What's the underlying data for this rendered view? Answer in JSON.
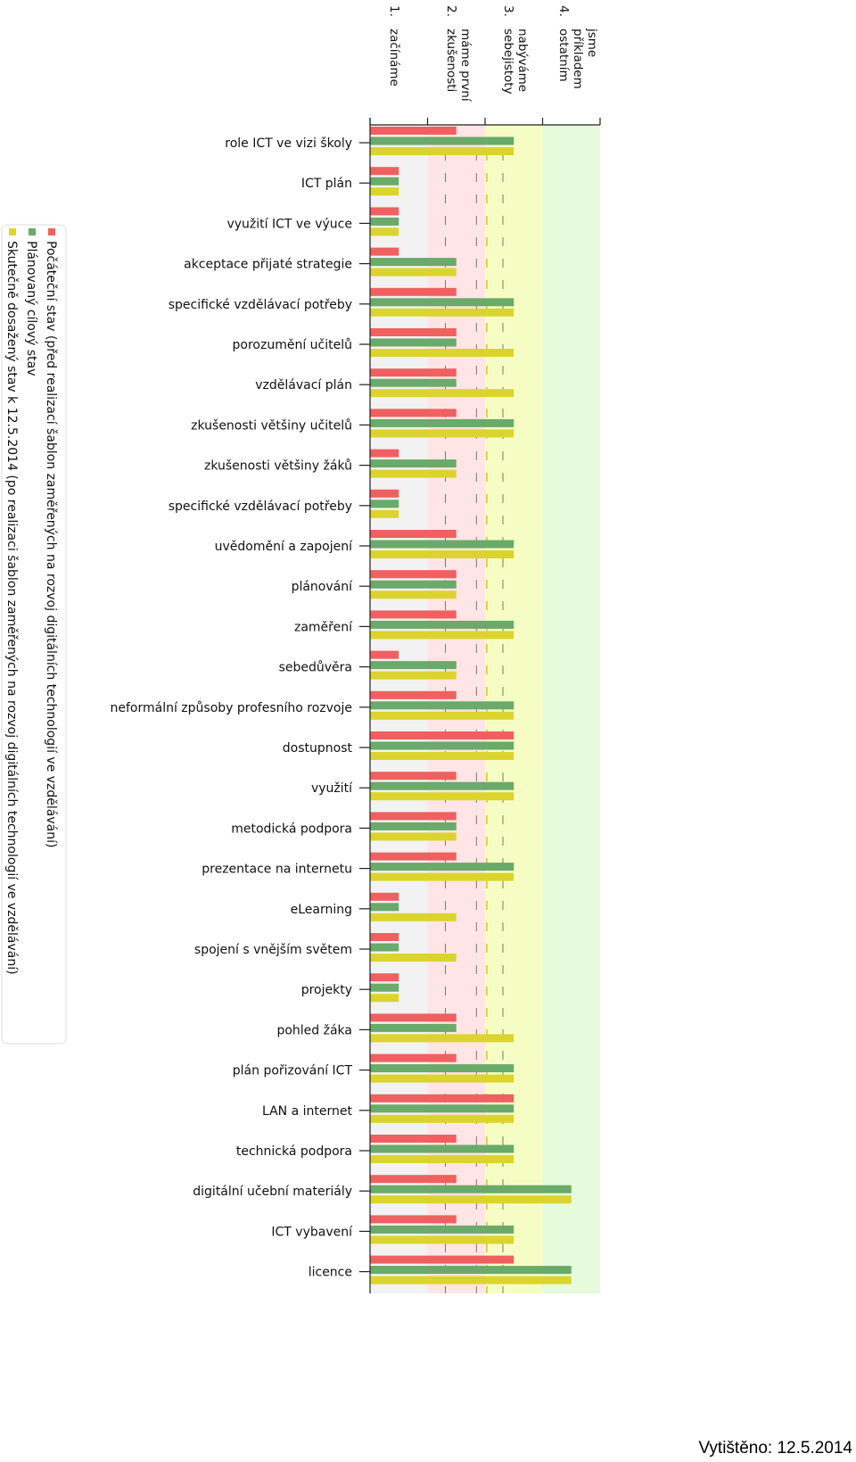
{
  "printed_note": "Vytištěno: 12.5.2014",
  "chart_data": {
    "type": "bar",
    "orientation": "horizontal",
    "level_labels": [
      {
        "level": 1,
        "number": "1.",
        "lines": [
          "začínáme"
        ]
      },
      {
        "level": 2,
        "number": "2.",
        "lines": [
          "máme první",
          "zkušenosti"
        ]
      },
      {
        "level": 3,
        "number": "3.",
        "lines": [
          "nabýváme",
          "sebejistoty"
        ]
      },
      {
        "level": 4,
        "number": "4.",
        "lines": [
          "jsme",
          "příkladem",
          "ostatním"
        ]
      }
    ],
    "xlim": [
      0,
      4
    ],
    "band_colors": [
      "#f2f2f2",
      "#ffe5e5",
      "#f6fdc4",
      "#e5fbdc"
    ],
    "categories": [
      "role ICT ve vizi školy",
      "ICT plán",
      "využití ICT ve výuce",
      "akceptace přijaté strategie",
      "specifické vzdělávací potřeby",
      "porozumění učitelů",
      "vzdělávací plán",
      "zkušenosti většiny učitelů",
      "zkušenosti většiny žáků",
      "specifické vzdělávací potřeby",
      "uvědomění a zapojení",
      "plánování",
      "zaměření",
      "sebedůvěra",
      "neformální způsoby profesního rozvoje",
      "dostupnost",
      "využití",
      "metodická podpora",
      "prezentace na internetu",
      "eLearning",
      "spojení s vnějším světem",
      "projekty",
      "pohled žáka",
      "plán pořizování ICT",
      "LAN a internet",
      "technická podpora",
      "digitální učební materiály",
      "ICT vybavení",
      "licence"
    ],
    "series": [
      {
        "name": "Počáteční stav (před realizací šablon zaměřených na rozvoj digitálních technologií ve vzdělávání)",
        "color": "#f06060",
        "values": [
          1.5,
          0.5,
          0.5,
          0.5,
          1.5,
          1.5,
          1.5,
          1.5,
          0.5,
          0.5,
          1.5,
          1.5,
          1.5,
          0.5,
          1.5,
          2.5,
          1.5,
          1.5,
          1.5,
          0.5,
          0.5,
          0.5,
          1.5,
          1.5,
          2.5,
          1.5,
          1.5,
          1.5,
          2.5
        ]
      },
      {
        "name": "Plánovaný cílový stav",
        "color": "#6aaa6a",
        "values": [
          2.5,
          0.5,
          0.5,
          1.5,
          2.5,
          1.5,
          1.5,
          2.5,
          1.5,
          0.5,
          2.5,
          1.5,
          2.5,
          1.5,
          2.5,
          2.5,
          2.5,
          1.5,
          2.5,
          0.5,
          0.5,
          0.5,
          1.5,
          2.5,
          2.5,
          2.5,
          3.5,
          2.5,
          3.5
        ]
      },
      {
        "name": "Skutečně dosažený stav k 12.5.2014 (po realizaci šablon zaměřených na rozvoj digitálních technologií ve vzdělávání)",
        "color": "#dcd42e",
        "values": [
          2.5,
          0.5,
          0.5,
          1.5,
          2.5,
          2.5,
          2.5,
          2.5,
          1.5,
          0.5,
          2.5,
          1.5,
          2.5,
          1.5,
          2.5,
          2.5,
          2.5,
          1.5,
          2.5,
          1.5,
          1.5,
          0.5,
          2.5,
          2.5,
          2.5,
          2.5,
          3.5,
          2.5,
          3.5
        ]
      }
    ]
  }
}
